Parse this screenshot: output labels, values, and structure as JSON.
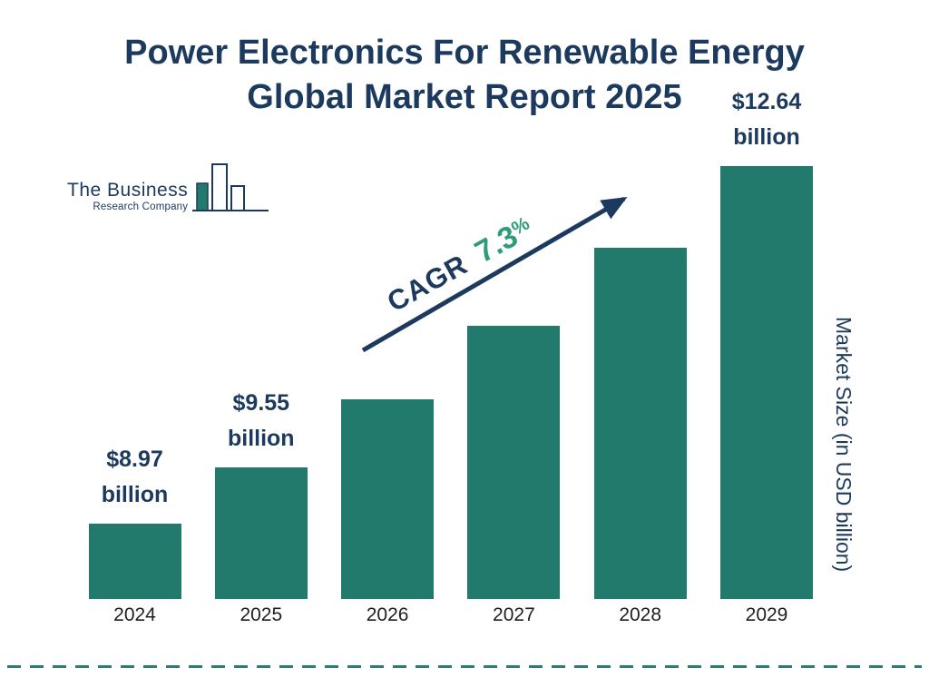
{
  "title": {
    "line1": "Power Electronics For Renewable Energy",
    "line2": "Global Market Report 2025"
  },
  "logo": {
    "name_line1": "The Business",
    "name_line2": "Research Company"
  },
  "cagr": {
    "label": "CAGR",
    "value": "7.3",
    "percent_sign": "%"
  },
  "y_axis_label": "Market Size (in USD billion)",
  "colors": {
    "navy": "#1C3A5E",
    "teal": "#217A6B",
    "green": "#2E9C78",
    "dash": "#2C7F70"
  },
  "chart_data": {
    "type": "bar",
    "title": "Power Electronics For Renewable Energy Global Market Report 2025",
    "categories": [
      "2024",
      "2025",
      "2026",
      "2027",
      "2028",
      "2029"
    ],
    "values": [
      8.97,
      9.55,
      10.25,
      11.0,
      11.8,
      12.64
    ],
    "value_labels": [
      {
        "show": true,
        "value": "$8.97",
        "unit": "billion"
      },
      {
        "show": true,
        "value": "$9.55",
        "unit": "billion"
      },
      {
        "show": false,
        "value": "",
        "unit": ""
      },
      {
        "show": false,
        "value": "",
        "unit": ""
      },
      {
        "show": false,
        "value": "",
        "unit": ""
      },
      {
        "show": true,
        "value": "$12.64",
        "unit": "billion"
      }
    ],
    "ylabel": "Market Size (in USD billion)",
    "xlabel": "",
    "annotation": "CAGR 7.3%",
    "legend": false,
    "grid": false
  }
}
